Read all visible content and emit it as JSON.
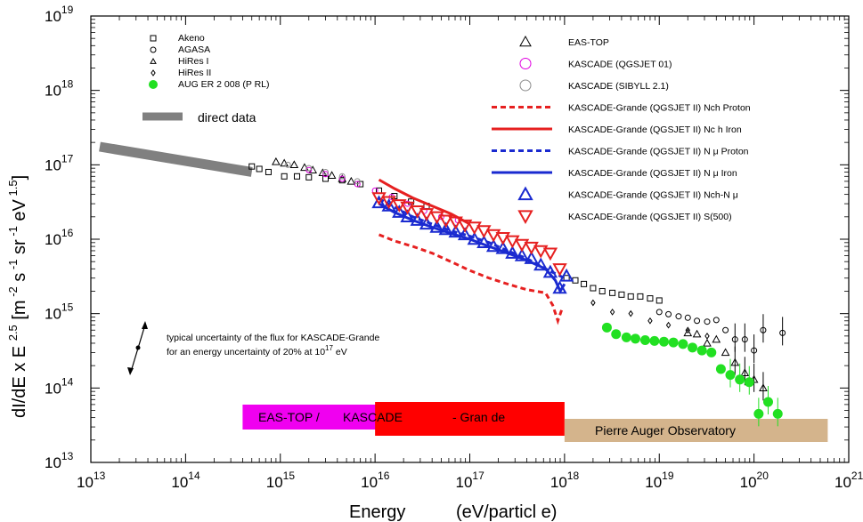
{
  "chart_data": {
    "type": "scatter",
    "x_scale": "log",
    "y_scale": "log",
    "xlim": [
      10000000000000.0,
      1e+21
    ],
    "ylim": [
      10000000000000.0,
      1e+19
    ],
    "xlabel_parts": [
      "Energy",
      "(eV/particl e)"
    ],
    "ylabel": "dI/dE x E^2.5 [m^-2 s^-1 sr^-1 eV^1.5]",
    "ylabel_main": "dI/dE x E",
    "ylabel_exp": "2.5",
    "x_tick_exponents": [
      "13",
      "14",
      "15",
      "16",
      "17",
      "18",
      "19",
      "20",
      "21"
    ],
    "y_tick_exponents": [
      "13",
      "14",
      "15",
      "16",
      "17",
      "18",
      "19"
    ],
    "tick_base": "10",
    "legend_left": [
      {
        "label": "Akeno",
        "marker": "square-open"
      },
      {
        "label": "AGASA",
        "marker": "circle-open"
      },
      {
        "label": "HiRes I",
        "marker": "triangle-open"
      },
      {
        "label": "HiRes II",
        "marker": "diamond-open"
      },
      {
        "label": "AUG ER 2 008 (P RL)",
        "marker": "circle-filled",
        "color": "#22e022"
      }
    ],
    "direct_label": "direct data",
    "legend_right": [
      {
        "label": "EAS-TOP",
        "marker": "triangle-open",
        "color": "#000000"
      },
      {
        "label": "KASCADE (QGSJET 01)",
        "marker": "circle-open",
        "color": "#e000e0"
      },
      {
        "label": "KASCADE (SIBYLL 2.1)",
        "marker": "circle-open",
        "color": "#8c8c8c"
      },
      {
        "label": "KASCADE-Grande (QGSJET II) Nch Proton",
        "marker": "line-dashed",
        "color": "#e62020"
      },
      {
        "label": "KASCADE-Grande (QGSJET II) Nc h Iron",
        "marker": "line-solid",
        "color": "#e62020"
      },
      {
        "label": "KASCADE-Grande (QGSJET II) N μ Proton",
        "marker": "line-dashed",
        "color": "#1a2ad0"
      },
      {
        "label": "KASCADE-Grande (QGSJET II) N μ Iron",
        "marker": "line-solid",
        "color": "#1a2ad0"
      },
      {
        "label": "KASCADE-Grande (QGSJET II) Nch-N μ",
        "marker": "triangle-up",
        "color": "#1a2ad0"
      },
      {
        "label": "KASCADE-Grande (QGSJET II) S(500)",
        "marker": "triangle-down",
        "color": "#e62020"
      }
    ],
    "annotation": {
      "line1": "typical uncertainty of the flux for KASCADE-Grande",
      "line2_prefix": "for an energy uncertainty of 20% at 10",
      "line2_exp": "17",
      "line2_suffix": " eV"
    },
    "colors": {
      "kg_red": "#e62020",
      "kg_blue": "#1a2ad0",
      "auger": "#22e022",
      "kascade_qgsjet": "#e000e0",
      "kascade_sibyll": "#8c8c8c",
      "direct": "#808080",
      "bar_eastop": "#f000f0",
      "bar_kg": "#ff0000",
      "bar_auger": "#d4b48c"
    },
    "direct_data": {
      "x": [
        10000000000000.0,
        500000000000000.0
      ],
      "y": [
        1.75e+17,
        8e+16
      ]
    },
    "experiment_bars": [
      {
        "label": "EAS-TOP /",
        "x0": 400000000000000.0,
        "x1": 8e+16,
        "color": "#f000f0"
      },
      {
        "label": "KASCADE",
        "x0": 1e+16,
        "x1": 1e+18,
        "color": "#ff0000"
      },
      {
        "label": "- Gran de",
        "x0": 1e+16,
        "x1": 1e+18,
        "color": "#ff0000"
      },
      {
        "label": "Pierre Auger Observatory",
        "x0": 1e+18,
        "x1": 6e+20,
        "color": "#d4b48c"
      }
    ],
    "series": [
      {
        "name": "Akeno",
        "marker": "square-open",
        "x": [
          500000000000000.0,
          600000000000000.0,
          750000000000000.0,
          1100000000000000.0,
          1500000000000000.0,
          2000000000000000.0,
          3000000000000000.0,
          4500000000000000.0,
          7000000000000000.0,
          1.1e+16,
          1.6e+16,
          2.4e+16,
          3.5e+16,
          1.05e+18,
          1.3e+18,
          1.6e+18,
          2e+18,
          2.5e+18,
          3.2e+18,
          4e+18,
          5e+18,
          6.3e+18,
          8e+18,
          1e+19
        ],
        "y": [
          9.5e+16,
          8.8e+16,
          8e+16,
          7e+16,
          7e+16,
          6.8e+16,
          6.5e+16,
          6.2e+16,
          5.5e+16,
          4.5e+16,
          3.8e+16,
          3.2e+16,
          2.8e+16,
          3000000000000000.0,
          2800000000000000.0,
          2500000000000000.0,
          2200000000000000.0,
          2000000000000000.0,
          1900000000000000.0,
          1800000000000000.0,
          1700000000000000.0,
          1700000000000000.0,
          1600000000000000.0,
          1500000000000000.0
        ]
      },
      {
        "name": "AGASA",
        "marker": "circle-open",
        "x": [
          1e+19,
          1.25e+19,
          1.6e+19,
          2e+19,
          2.5e+19,
          3.2e+19,
          4e+19,
          5e+19,
          6.3e+19,
          8e+19,
          1e+20,
          1.25e+20,
          2e+20
        ],
        "y": [
          1050000000000000.0,
          980000000000000.0,
          920000000000000.0,
          880000000000000.0,
          800000000000000.0,
          780000000000000.0,
          820000000000000.0,
          600000000000000.0,
          450000000000000.0,
          450000000000000.0,
          320000000000000.0,
          600000000000000.0,
          550000000000000.0
        ]
      },
      {
        "name": "HiRes I",
        "marker": "triangle-open",
        "x": [
          2e+19,
          2.5e+19,
          3.2e+19,
          4e+19,
          5e+19,
          6.3e+19,
          8e+19,
          1e+20,
          1.25e+20
        ],
        "y": [
          550000000000000.0,
          530000000000000.0,
          400000000000000.0,
          450000000000000.0,
          300000000000000.0,
          220000000000000.0,
          160000000000000.0,
          130000000000000.0,
          100000000000000.0
        ]
      },
      {
        "name": "HiRes II",
        "marker": "diamond-open",
        "x": [
          2e+18,
          3.2e+18,
          5e+18,
          8e+18,
          1.25e+19,
          2e+19,
          3.2e+19
        ],
        "y": [
          1400000000000000.0,
          1050000000000000.0,
          1000000000000000.0,
          800000000000000.0,
          700000000000000.0,
          600000000000000.0,
          500000000000000.0
        ]
      },
      {
        "name": "AUG ER 2 008 (P RL)",
        "marker": "circle-filled",
        "x": [
          2.8e+18,
          3.5e+18,
          4.5e+18,
          5.6e+18,
          7.1e+18,
          8.9e+18,
          1.12e+19,
          1.41e+19,
          1.78e+19,
          2.24e+19,
          2.82e+19,
          3.55e+19,
          4.47e+19,
          5.62e+19,
          7.08e+19,
          8.91e+19,
          1.12e+20,
          1.41e+20,
          1.78e+20
        ],
        "y": [
          650000000000000.0,
          530000000000000.0,
          480000000000000.0,
          460000000000000.0,
          440000000000000.0,
          430000000000000.0,
          420000000000000.0,
          410000000000000.0,
          390000000000000.0,
          350000000000000.0,
          320000000000000.0,
          300000000000000.0,
          180000000000000.0,
          150000000000000.0,
          130000000000000.0,
          120000000000000.0,
          45000000000000.0,
          65000000000000.0,
          45000000000000.0
        ]
      },
      {
        "name": "EAS-TOP",
        "marker": "triangle-open",
        "x": [
          900000000000000.0,
          1100000000000000.0,
          1400000000000000.0,
          1800000000000000.0,
          2200000000000000.0,
          2800000000000000.0,
          3500000000000000.0,
          4500000000000000.0,
          5600000000000000.0
        ],
        "y": [
          1.1e+17,
          1.05e+17,
          1e+17,
          9.2e+16,
          8.5e+16,
          7.8e+16,
          7.2e+16,
          6.5e+16,
          6e+16
        ]
      },
      {
        "name": "KASCADE (QGSJET 01)",
        "marker": "circle-open",
        "x": [
          2000000000000000.0,
          3000000000000000.0,
          4500000000000000.0,
          6500000000000000.0,
          1e+16,
          1.5e+16,
          2.2e+16,
          3.3e+16,
          5e+16,
          7.5e+16
        ],
        "y": [
          8.5e+16,
          7.5e+16,
          6.5e+16,
          5.5e+16,
          4.5e+16,
          3.7e+16,
          3e+16,
          2.4e+16,
          2e+16,
          1.8e+16
        ]
      },
      {
        "name": "KASCADE (SIBYLL 2.1)",
        "marker": "circle-open",
        "x": [
          1200000000000000.0,
          2000000000000000.0,
          3000000000000000.0,
          4500000000000000.0,
          6500000000000000.0
        ],
        "y": [
          1e+17,
          9e+16,
          8e+16,
          7e+16,
          6e+16
        ]
      },
      {
        "name": "KASCADE-Grande (QGSJET II) Nch Proton",
        "marker": "line-dashed",
        "x": [
          1.1e+16,
          1.6e+16,
          2.5e+16,
          4e+16,
          6.3e+16,
          1e+17,
          1.6e+17,
          2.5e+17,
          4e+17,
          6.3e+17,
          7.5e+17,
          8.5e+17,
          9.5e+17
        ],
        "y": [
          1.15e+16,
          9500000000000000.0,
          8000000000000000.0,
          6500000000000000.0,
          5000000000000000.0,
          3800000000000000.0,
          3000000000000000.0,
          2500000000000000.0,
          2100000000000000.0,
          1900000000000000.0,
          1300000000000000.0,
          800000000000000.0,
          1200000000000000.0
        ]
      },
      {
        "name": "KASCADE-Grande (QGSJET II) Nc h Iron",
        "marker": "line-solid",
        "x": [
          1.1e+16,
          1.6e+16,
          2.5e+16,
          4e+16,
          6.3e+16,
          1e+17
        ],
        "y": [
          6.3e+16,
          4.8e+16,
          3.6e+16,
          2.8e+16,
          2.2e+16,
          1.6e+16
        ]
      },
      {
        "name": "KASCADE-Grande (QGSJET II) N μ Proton",
        "marker": "line-dashed",
        "x": [
          1.1e+16,
          1.6e+16,
          2.5e+16,
          4e+16,
          6.3e+16,
          1e+17,
          1.6e+17,
          2.5e+17,
          4e+17,
          6.3e+17,
          1e+18
        ],
        "y": [
          3.5e+16,
          2.7e+16,
          2e+16,
          1.6e+16,
          1.3e+16,
          1.1e+16,
          9000000000000000.0,
          7000000000000000.0,
          5500000000000000.0,
          4000000000000000.0,
          3000000000000000.0
        ]
      },
      {
        "name": "KASCADE-Grande (QGSJET II) N μ Iron",
        "marker": "line-solid",
        "x": [
          1.1e+16,
          1.6e+16,
          2.5e+16,
          4e+16,
          6.3e+16,
          1e+17,
          1.6e+17,
          2.5e+17,
          4e+17,
          6.3e+17,
          8e+17,
          9e+17,
          1e+18
        ],
        "y": [
          3e+16,
          2.3e+16,
          1.8e+16,
          1.45e+16,
          1.2e+16,
          1e+16,
          8000000000000000.0,
          6500000000000000.0,
          5200000000000000.0,
          4000000000000000.0,
          2800000000000000.0,
          2000000000000000.0,
          2500000000000000.0
        ]
      },
      {
        "name": "KASCADE-Grande (QGSJET II) Nch-N μ",
        "marker": "triangle-up",
        "x": [
          1.1e+16,
          1.4e+16,
          1.8e+16,
          2.2e+16,
          2.8e+16,
          3.5e+16,
          4.5e+16,
          5.6e+16,
          7.1e+16,
          8.9e+16,
          1.12e+17,
          1.41e+17,
          1.78e+17,
          2.24e+17,
          2.82e+17,
          3.55e+17,
          4.47e+17,
          5.62e+17,
          7.08e+17,
          8.91e+17,
          1.05e+18
        ],
        "y": [
          3.1e+16,
          2.8e+16,
          2.3e+16,
          2e+16,
          1.8e+16,
          1.6e+16,
          1.45e+16,
          1.35e+16,
          1.25e+16,
          1.15e+16,
          1e+16,
          9000000000000000.0,
          8000000000000000.0,
          7500000000000000.0,
          6500000000000000.0,
          6000000000000000.0,
          5500000000000000.0,
          4500000000000000.0,
          3600000000000000.0,
          2200000000000000.0,
          3200000000000000.0
        ]
      },
      {
        "name": "KASCADE-Grande (QGSJET II) S(500)",
        "marker": "triangle-down",
        "x": [
          1.1e+16,
          1.4e+16,
          1.8e+16,
          2.2e+16,
          2.8e+16,
          3.5e+16,
          4.5e+16,
          5.6e+16,
          7.1e+16,
          8.9e+16,
          1.12e+17,
          1.41e+17,
          1.78e+17,
          2.24e+17,
          2.82e+17,
          3.55e+17,
          4.47e+17,
          5.62e+17,
          7.08e+17,
          8.91e+17
        ],
        "y": [
          3.6e+16,
          3.2e+16,
          2.9e+16,
          2.7e+16,
          2.4e+16,
          2.2e+16,
          2e+16,
          1.8e+16,
          1.7e+16,
          1.55e+16,
          1.45e+16,
          1.3e+16,
          1.15e+16,
          1.05e+16,
          9500000000000000.0,
          8500000000000000.0,
          7800000000000000.0,
          7000000000000000.0,
          6500000000000000.0,
          4000000000000000.0
        ]
      }
    ]
  }
}
